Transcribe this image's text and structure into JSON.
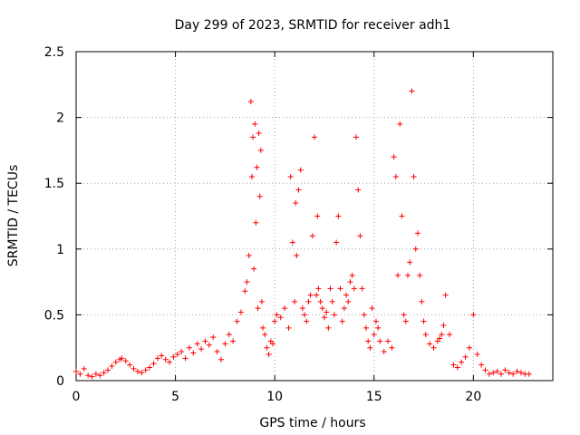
{
  "chart_data": {
    "type": "scatter",
    "title": "Day 299 of 2023, SRMTID for receiver adh1",
    "xlabel": "GPS time / hours",
    "ylabel": "SRMTID / TECUs",
    "xlim": [
      0,
      24
    ],
    "ylim": [
      0,
      2.5
    ],
    "xticks": [
      0,
      5,
      10,
      15,
      20
    ],
    "xtick_labels": [
      "0",
      "5",
      "10",
      "15",
      "20"
    ],
    "yticks": [
      0,
      0.5,
      1,
      1.5,
      2,
      2.5
    ],
    "ytick_labels": [
      "0",
      "0.5",
      "1",
      "1.5",
      "2",
      "2.5"
    ],
    "grid": true,
    "marker": "+",
    "color": "#ff0000",
    "series": [
      {
        "name": "SRMTID",
        "x": [
          0.0,
          0.2,
          0.4,
          0.6,
          0.8,
          1.0,
          1.2,
          1.4,
          1.6,
          1.8,
          2.0,
          2.2,
          2.3,
          2.5,
          2.7,
          2.9,
          3.1,
          3.3,
          3.5,
          3.7,
          3.9,
          4.1,
          4.3,
          4.5,
          4.7,
          4.9,
          5.1,
          5.3,
          5.5,
          5.7,
          5.9,
          6.1,
          6.3,
          6.5,
          6.7,
          6.9,
          7.1,
          7.3,
          7.5,
          7.7,
          7.9,
          8.1,
          8.3,
          8.5,
          8.6,
          8.7,
          8.8,
          8.85,
          8.9,
          8.95,
          9.0,
          9.05,
          9.1,
          9.15,
          9.2,
          9.25,
          9.3,
          9.35,
          9.4,
          9.5,
          9.6,
          9.7,
          9.8,
          9.9,
          10.0,
          10.1,
          10.3,
          10.5,
          10.7,
          10.8,
          10.9,
          11.0,
          11.05,
          11.1,
          11.2,
          11.3,
          11.4,
          11.5,
          11.6,
          11.7,
          11.8,
          11.9,
          12.0,
          12.1,
          12.15,
          12.2,
          12.3,
          12.4,
          12.5,
          12.6,
          12.7,
          12.8,
          12.9,
          13.0,
          13.1,
          13.2,
          13.3,
          13.4,
          13.5,
          13.6,
          13.7,
          13.8,
          13.9,
          14.0,
          14.1,
          14.2,
          14.3,
          14.4,
          14.5,
          14.6,
          14.7,
          14.8,
          14.9,
          15.0,
          15.1,
          15.2,
          15.3,
          15.5,
          15.7,
          15.9,
          16.0,
          16.1,
          16.2,
          16.3,
          16.4,
          16.5,
          16.6,
          16.7,
          16.8,
          16.9,
          17.0,
          17.1,
          17.2,
          17.3,
          17.4,
          17.5,
          17.6,
          17.8,
          18.0,
          18.2,
          18.3,
          18.4,
          18.5,
          18.6,
          18.8,
          19.0,
          19.2,
          19.4,
          19.6,
          19.8,
          20.0,
          20.2,
          20.4,
          20.6,
          20.8,
          21.0,
          21.2,
          21.4,
          21.6,
          21.8,
          22.0,
          22.2,
          22.4,
          22.6,
          22.8
        ],
        "y": [
          0.07,
          0.05,
          0.09,
          0.04,
          0.03,
          0.05,
          0.04,
          0.06,
          0.08,
          0.11,
          0.14,
          0.16,
          0.17,
          0.15,
          0.12,
          0.09,
          0.07,
          0.06,
          0.08,
          0.1,
          0.13,
          0.17,
          0.19,
          0.16,
          0.14,
          0.18,
          0.2,
          0.22,
          0.17,
          0.25,
          0.21,
          0.28,
          0.24,
          0.3,
          0.27,
          0.33,
          0.22,
          0.16,
          0.28,
          0.35,
          0.3,
          0.45,
          0.52,
          0.68,
          0.75,
          0.95,
          2.12,
          1.55,
          1.85,
          0.85,
          1.95,
          1.2,
          1.62,
          0.55,
          1.88,
          1.4,
          1.75,
          0.6,
          0.4,
          0.35,
          0.25,
          0.2,
          0.3,
          0.28,
          0.45,
          0.5,
          0.48,
          0.55,
          0.4,
          1.55,
          1.05,
          0.6,
          1.35,
          0.95,
          1.45,
          1.6,
          0.55,
          0.5,
          0.45,
          0.6,
          0.65,
          1.1,
          1.85,
          0.65,
          1.25,
          0.7,
          0.6,
          0.55,
          0.48,
          0.52,
          0.4,
          0.7,
          0.6,
          0.5,
          1.05,
          1.25,
          0.7,
          0.45,
          0.55,
          0.65,
          0.6,
          0.75,
          0.8,
          0.7,
          1.85,
          1.45,
          1.1,
          0.7,
          0.5,
          0.4,
          0.3,
          0.25,
          0.55,
          0.35,
          0.45,
          0.4,
          0.3,
          0.22,
          0.3,
          0.25,
          1.7,
          1.55,
          0.8,
          1.95,
          1.25,
          0.5,
          0.45,
          0.8,
          0.9,
          2.2,
          1.55,
          1.0,
          1.12,
          0.8,
          0.6,
          0.45,
          0.35,
          0.28,
          0.25,
          0.3,
          0.32,
          0.35,
          0.42,
          0.65,
          0.35,
          0.12,
          0.1,
          0.14,
          0.18,
          0.25,
          0.5,
          0.2,
          0.12,
          0.08,
          0.05,
          0.06,
          0.07,
          0.05,
          0.08,
          0.06,
          0.05,
          0.07,
          0.06,
          0.05,
          0.05
        ]
      }
    ]
  }
}
